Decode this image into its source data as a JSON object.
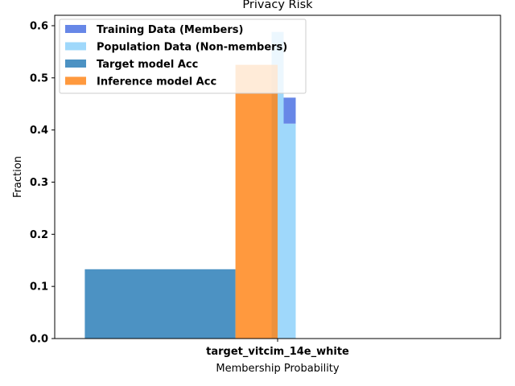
{
  "chart_data": {
    "type": "bar",
    "title": "Privacy Risk",
    "xlabel": "Membership Probability",
    "ylabel": "Fraction",
    "categories": [
      "target_vitcim_14e_white"
    ],
    "ylim": [
      0,
      0.62
    ],
    "yticks": [
      "0.0",
      "0.1",
      "0.2",
      "0.3",
      "0.4",
      "0.5",
      "0.6"
    ],
    "grid": false,
    "legend_position": "top-left",
    "series": [
      {
        "name": "Training Data (Members)",
        "color": "#4169e1",
        "kind": "histogram",
        "bins": [
          {
            "x_from": 0.88,
            "x_to": 0.9,
            "value": 0.462,
            "base": 0.412
          }
        ]
      },
      {
        "name": "Population Data (Non-members)",
        "color": "#87cefa",
        "kind": "histogram",
        "bins": [
          {
            "x_from": 0.86,
            "x_to": 0.88,
            "value": 0.588,
            "base": 0.0
          },
          {
            "x_from": 0.88,
            "x_to": 0.9,
            "value": 0.412,
            "base": 0.0
          }
        ]
      },
      {
        "name": "Target model Acc",
        "color": "#1f77b4",
        "kind": "bar",
        "bins": [
          {
            "x_from": 0.55,
            "x_to": 0.8,
            "value": 0.133,
            "base": 0.0
          }
        ]
      },
      {
        "name": "Inference model Acc",
        "color": "#ff7f0e",
        "kind": "bar",
        "bins": [
          {
            "x_from": 0.8,
            "x_to": 0.87,
            "value": 0.525,
            "base": 0.0
          }
        ]
      }
    ]
  }
}
